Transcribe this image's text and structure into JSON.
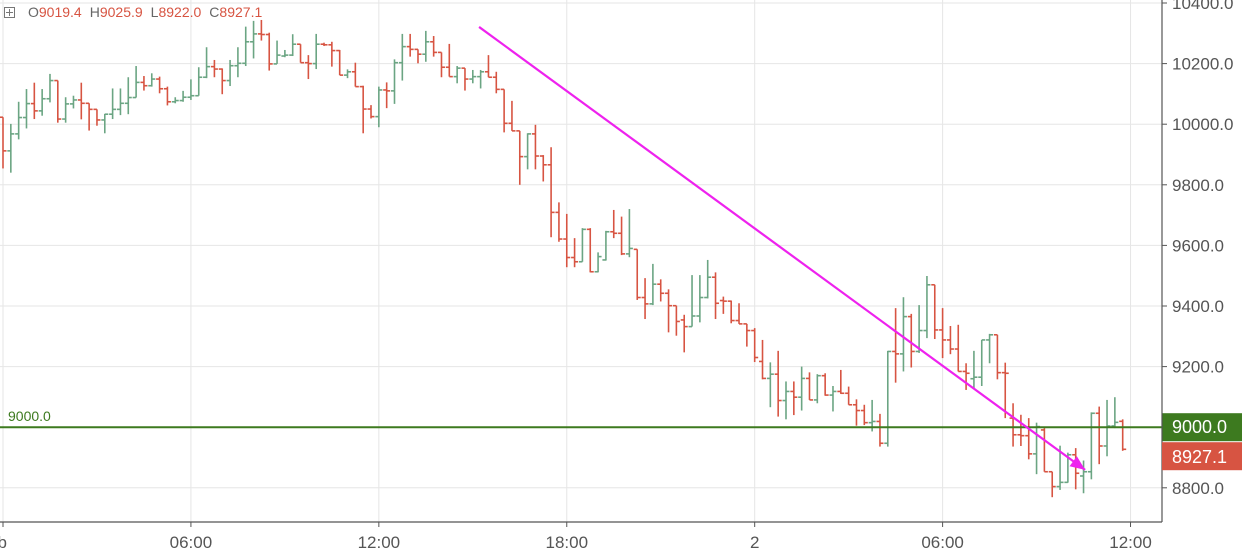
{
  "legend": {
    "icon": "plus-square-icon",
    "open_label": "O",
    "open": "9019.4",
    "high_label": "H",
    "high": "9025.9",
    "low_label": "L",
    "low": "8922.0",
    "close_label": "C",
    "close": "8927.1"
  },
  "chart_data": {
    "type": "ohlc",
    "interval": "15m",
    "ylim": [
      8730,
      10410
    ],
    "grid": true,
    "y_ticks": [
      "10400.0",
      "10200.0",
      "10000.0",
      "9800.0",
      "9600.0",
      "9400.0",
      "9200.0",
      "9000.0",
      "8800.0"
    ],
    "x_ticks": [
      "eb",
      "06:00",
      "12:00",
      "18:00",
      "2",
      "06:00",
      "12:00"
    ],
    "colors": {
      "up": "#6ba583",
      "down": "#d75442",
      "grid": "#e6e6e6",
      "hline": "#3d7a1f",
      "trendline": "#ee22ee"
    },
    "horizontal_line": {
      "value": 9000.0,
      "label": "9000.0"
    },
    "last_price": {
      "value": 8927.1,
      "label": "8927.1"
    },
    "trend_arrow": {
      "start": {
        "bar": 60.8,
        "value": 10321
      },
      "end": {
        "bar": 138.2,
        "value": 8859
      }
    },
    "bars": [
      [
        10023,
        10023,
        9854,
        9912
      ],
      [
        9912,
        10001,
        9840,
        9968
      ],
      [
        9968,
        10074,
        9950,
        10022
      ],
      [
        10022,
        10116,
        9986,
        10068
      ],
      [
        10068,
        10137,
        10017,
        10044
      ],
      [
        10044,
        10116,
        10028,
        10084
      ],
      [
        10084,
        10166,
        10072,
        10144
      ],
      [
        10144,
        10144,
        10005,
        10017
      ],
      [
        10017,
        10089,
        10005,
        10067
      ],
      [
        10067,
        10094,
        10052,
        10080
      ],
      [
        10080,
        10137,
        10016,
        10069
      ],
      [
        10069,
        10069,
        9979,
        10049
      ],
      [
        10049,
        10049,
        9995,
        10014
      ],
      [
        10014,
        10034,
        9970,
        10033
      ],
      [
        10033,
        10118,
        10017,
        10049
      ],
      [
        10049,
        10118,
        10030,
        10069
      ],
      [
        10069,
        10155,
        10033,
        10088
      ],
      [
        10088,
        10192,
        10088,
        10138
      ],
      [
        10138,
        10159,
        10111,
        10127
      ],
      [
        10127,
        10168,
        10124,
        10149
      ],
      [
        10149,
        10157,
        10102,
        10117
      ],
      [
        10117,
        10124,
        10062,
        10074
      ],
      [
        10074,
        10089,
        10069,
        10078
      ],
      [
        10078,
        10110,
        10074,
        10089
      ],
      [
        10089,
        10148,
        10080,
        10094
      ],
      [
        10094,
        10188,
        10094,
        10155
      ],
      [
        10155,
        10254,
        10152,
        10190
      ],
      [
        10190,
        10212,
        10155,
        10182
      ],
      [
        10182,
        10184,
        10099,
        10144
      ],
      [
        10144,
        10212,
        10126,
        10193
      ],
      [
        10193,
        10254,
        10155,
        10201
      ],
      [
        10201,
        10322,
        10192,
        10272
      ],
      [
        10272,
        10341,
        10217,
        10298
      ],
      [
        10298,
        10344,
        10276,
        10296
      ],
      [
        10296,
        10302,
        10177,
        10199
      ],
      [
        10199,
        10276,
        10199,
        10228
      ],
      [
        10225,
        10245,
        10221,
        10228
      ],
      [
        10228,
        10297,
        10225,
        10264
      ],
      [
        10264,
        10264,
        10203,
        10203
      ],
      [
        10203,
        10228,
        10149,
        10200
      ],
      [
        10200,
        10298,
        10182,
        10264
      ],
      [
        10264,
        10269,
        10258,
        10262
      ],
      [
        10262,
        10272,
        10190,
        10243
      ],
      [
        10243,
        10245,
        10162,
        10162
      ],
      [
        10162,
        10181,
        10152,
        10173
      ],
      [
        10173,
        10203,
        10124,
        10124
      ],
      [
        10124,
        10127,
        9970,
        10050
      ],
      [
        10050,
        10063,
        10019,
        10025
      ],
      [
        10025,
        10124,
        9990,
        10113
      ],
      [
        10113,
        10138,
        10053,
        10110
      ],
      [
        10110,
        10214,
        10067,
        10203
      ],
      [
        10203,
        10298,
        10144,
        10256
      ],
      [
        10256,
        10298,
        10223,
        10247
      ],
      [
        10247,
        10247,
        10201,
        10231
      ],
      [
        10231,
        10308,
        10206,
        10272
      ],
      [
        10272,
        10291,
        10223,
        10237
      ],
      [
        10237,
        10237,
        10155,
        10188
      ],
      [
        10188,
        10265,
        10157,
        10157
      ],
      [
        10157,
        10192,
        10135,
        10185
      ],
      [
        10185,
        10185,
        10111,
        10149
      ],
      [
        10149,
        10179,
        10135,
        10157
      ],
      [
        10157,
        10179,
        10118,
        10173
      ],
      [
        10173,
        10228,
        10155,
        10155
      ],
      [
        10155,
        10173,
        10102,
        10115
      ],
      [
        10115,
        10115,
        9973,
        10003
      ],
      [
        10003,
        10077,
        9978,
        9978
      ],
      [
        9978,
        9978,
        9800,
        9893
      ],
      [
        9893,
        9970,
        9851,
        9968
      ],
      [
        9968,
        9998,
        9851,
        9895
      ],
      [
        9895,
        9898,
        9811,
        9866
      ],
      [
        9866,
        9924,
        9627,
        9709
      ],
      [
        9709,
        9742,
        9612,
        9621
      ],
      [
        9621,
        9704,
        9528,
        9560
      ],
      [
        9560,
        9624,
        9528,
        9546
      ],
      [
        9546,
        9657,
        9546,
        9653
      ],
      [
        9653,
        9657,
        9511,
        9513
      ],
      [
        9513,
        9577,
        9511,
        9563
      ],
      [
        9552,
        9648,
        9550,
        9645
      ],
      [
        9645,
        9717,
        9624,
        9640
      ],
      [
        9640,
        9695,
        9568,
        9572
      ],
      [
        9572,
        9720,
        9561,
        9590
      ],
      [
        9587,
        9587,
        9420,
        9428
      ],
      [
        9428,
        9492,
        9357,
        9407
      ],
      [
        9407,
        9539,
        9403,
        9472
      ],
      [
        9472,
        9488,
        9415,
        9442
      ],
      [
        9442,
        9455,
        9313,
        9401
      ],
      [
        9401,
        9401,
        9302,
        9349
      ],
      [
        9354,
        9371,
        9247,
        9332
      ],
      [
        9332,
        9502,
        9332,
        9367
      ],
      [
        9367,
        9502,
        9346,
        9428
      ],
      [
        9428,
        9552,
        9425,
        9495
      ],
      [
        9495,
        9511,
        9357,
        9409
      ],
      [
        9418,
        9431,
        9374,
        9416
      ],
      [
        9416,
        9418,
        9343,
        9352
      ],
      [
        9352,
        9409,
        9341,
        9341
      ],
      [
        9341,
        9341,
        9266,
        9319
      ],
      [
        9319,
        9327,
        9215,
        9230
      ],
      [
        9217,
        9288,
        9158,
        9161
      ],
      [
        9161,
        9214,
        9066,
        9175
      ],
      [
        9175,
        9252,
        9035,
        9088
      ],
      [
        9088,
        9151,
        9026,
        9118
      ],
      [
        9118,
        9151,
        9040,
        9099
      ],
      [
        9099,
        9200,
        9055,
        9161
      ],
      [
        9161,
        9181,
        9090,
        9090
      ],
      [
        9090,
        9175,
        9079,
        9170
      ],
      [
        9170,
        9178,
        9104,
        9106
      ],
      [
        9106,
        9136,
        9052,
        9118
      ],
      [
        9118,
        9189,
        9110,
        9112
      ],
      [
        9112,
        9134,
        9074,
        9074
      ],
      [
        9074,
        9092,
        9005,
        9055
      ],
      [
        9055,
        9074,
        9007,
        9015
      ],
      [
        9015,
        9090,
        8986,
        9019
      ],
      [
        9019,
        9044,
        8936,
        8947
      ],
      [
        8947,
        9252,
        8936,
        9250
      ],
      [
        9250,
        9393,
        9147,
        9242
      ],
      [
        9242,
        9429,
        9184,
        9365
      ],
      [
        9365,
        9374,
        9197,
        9250
      ],
      [
        9250,
        9403,
        9245,
        9319
      ],
      [
        9319,
        9499,
        9294,
        9470
      ],
      [
        9470,
        9470,
        9291,
        9321
      ],
      [
        9321,
        9393,
        9228,
        9288
      ],
      [
        9288,
        9334,
        9241,
        9258
      ],
      [
        9258,
        9338,
        9184,
        9184
      ],
      [
        9184,
        9211,
        9123,
        9178
      ],
      [
        9160,
        9252,
        9129,
        9165
      ],
      [
        9165,
        9288,
        9136,
        9288
      ],
      [
        9288,
        9308,
        9211,
        9305
      ],
      [
        9305,
        9305,
        9158,
        9180
      ],
      [
        9180,
        9213,
        9030,
        9178
      ],
      [
        9030,
        9079,
        8936,
        8975
      ],
      [
        8975,
        9041,
        8938,
        8972
      ],
      [
        8972,
        9030,
        8894,
        8912
      ],
      [
        8912,
        9015,
        8845,
        9002
      ],
      [
        8991,
        8997,
        8853,
        8853
      ],
      [
        8853,
        8853,
        8769,
        8804
      ],
      [
        8804,
        8939,
        8793,
        8818
      ],
      [
        8818,
        8916,
        8817,
        8909
      ],
      [
        8909,
        8931,
        8795,
        8848
      ],
      [
        8839,
        8890,
        8782,
        8853
      ],
      [
        8853,
        9049,
        8828,
        9046
      ],
      [
        9046,
        9068,
        8878,
        8938
      ],
      [
        8938,
        9090,
        8904,
        9004
      ],
      [
        9004,
        9099,
        8997,
        9016
      ],
      [
        9019.4,
        9025.9,
        8922.0,
        8927.1
      ]
    ]
  }
}
